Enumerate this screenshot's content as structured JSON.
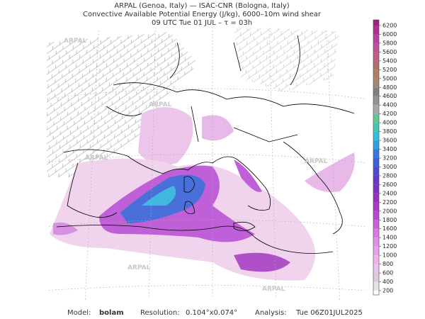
{
  "header": {
    "lines": [
      "ARPAL (Genoa, Italy)  —  ISAC-CNR (Bologna, Italy)",
      "Convective Available Potential Energy (J/kg), 6000–10m wind shear",
      "09 UTC Tue 01 JUL  –  τ = 03h"
    ]
  },
  "watermark": "ARPAL",
  "colorbar": {
    "ticks": [
      200,
      400,
      600,
      800,
      1000,
      1200,
      1400,
      1600,
      1800,
      2000,
      2200,
      2400,
      2600,
      2800,
      3000,
      3200,
      3400,
      3600,
      3800,
      4000,
      4200,
      4400,
      4600,
      4800,
      5000,
      5200,
      5400,
      5600,
      5800,
      6000,
      6200
    ],
    "colors": [
      "#ffffff",
      "#e4e4e4",
      "#dccadc",
      "#eac4ea",
      "#f0b2ea",
      "#e8a0e8",
      "#e090e8",
      "#d878e0",
      "#c860d8",
      "#b848d0",
      "#a838c8",
      "#9830c0",
      "#8030c0",
      "#6838c8",
      "#5048d0",
      "#4060d8",
      "#3878e0",
      "#30a0e0",
      "#30c0d8",
      "#40c8b0",
      "#60c890",
      "#a8a8a8",
      "#949494",
      "#808080",
      "#a08878",
      "#b08060",
      "#b07070",
      "#c06080",
      "#c05098",
      "#b840a0",
      "#b03090",
      "#a02080"
    ]
  },
  "footer": {
    "model_label": "Model:",
    "model": "bolam",
    "resolution_label": "Resolution:",
    "resolution": "0.104°x0.074°",
    "analysis_label": "Analysis:",
    "analysis": "Tue 06Z01JUL2025"
  }
}
